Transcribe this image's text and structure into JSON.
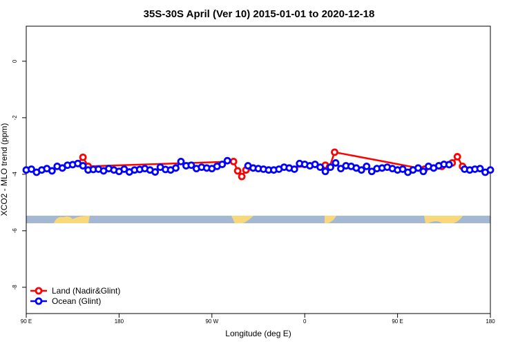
{
  "chart_data": {
    "type": "line",
    "title": "35S-30S April (Ver 10)   2015-01-01 to 2020-12-18",
    "xlabel": "Longitude (deg E)",
    "ylabel": "XCO2 - MLO trend (ppm)",
    "xlim": [
      90,
      540
    ],
    "ylim": [
      -8.93,
      1.24
    ],
    "xticks": [
      {
        "value": 90,
        "label": "90 E"
      },
      180,
      {
        "value": 270,
        "label": "90 W"
      },
      {
        "value": 360,
        "label": "0"
      },
      {
        "value": 450,
        "label": "90 E"
      },
      {
        "value": 540,
        "label": "180"
      }
    ],
    "yticks": [
      0,
      -2,
      -4,
      -6,
      -8
    ],
    "legend": "bottom-left",
    "series": [
      {
        "name": "Land (Nadir&Glint)",
        "color": "#ff0000",
        "x": [
          140,
          145,
          150,
          291,
          295,
          299,
          303,
          380,
          384,
          389,
          476,
          493,
          503,
          508,
          513
        ],
        "values": [
          -3.62,
          -3.4,
          -3.72,
          -3.55,
          -3.88,
          -4.08,
          -3.85,
          -3.68,
          -3.75,
          -3.22,
          -3.82,
          -3.72,
          -3.6,
          -3.38,
          -3.72
        ]
      },
      {
        "name": "Ocean (Glint)",
        "color": "#0000ff",
        "x": [
          90,
          95,
          100,
          105,
          110,
          115,
          120,
          125,
          130,
          135,
          140,
          145,
          150,
          155,
          160,
          165,
          170,
          175,
          180,
          185,
          190,
          195,
          200,
          205,
          210,
          215,
          220,
          225,
          230,
          235,
          240,
          245,
          250,
          255,
          260,
          265,
          270,
          275,
          280,
          285,
          290,
          295,
          300,
          305,
          310,
          315,
          320,
          325,
          330,
          335,
          340,
          345,
          350,
          355,
          360,
          365,
          370,
          375,
          380,
          385,
          390,
          395,
          400,
          405,
          410,
          415,
          420,
          425,
          430,
          435,
          440,
          445,
          450,
          455,
          460,
          465,
          470,
          475,
          480,
          485,
          490,
          495,
          500,
          505,
          510,
          515,
          520,
          525,
          530,
          535,
          540
        ],
        "values": [
          -3.85,
          -3.82,
          -3.93,
          -3.85,
          -3.8,
          -3.88,
          -3.72,
          -3.78,
          -3.68,
          -3.66,
          -3.62,
          -3.7,
          -3.85,
          -3.83,
          -3.82,
          -3.88,
          -3.8,
          -3.85,
          -3.9,
          -3.82,
          -3.92,
          -3.85,
          -3.83,
          -3.8,
          -3.85,
          -3.92,
          -3.75,
          -3.83,
          -3.85,
          -3.78,
          -3.55,
          -3.7,
          -3.68,
          -3.8,
          -3.75,
          -3.78,
          -3.8,
          -3.72,
          -3.65,
          -3.52,
          null,
          null,
          null,
          -3.7,
          -3.78,
          -3.8,
          -3.82,
          -3.85,
          -3.85,
          -3.82,
          -3.75,
          -3.78,
          -3.82,
          -3.62,
          -3.65,
          -3.7,
          -3.65,
          -3.75,
          -3.9,
          -3.75,
          -3.6,
          -3.8,
          -3.7,
          -3.72,
          -3.78,
          -3.85,
          -3.72,
          -3.9,
          -3.8,
          -3.78,
          -3.75,
          -3.8,
          -3.85,
          -3.82,
          -3.93,
          -3.85,
          -3.78,
          -3.9,
          -3.72,
          -3.78,
          -3.7,
          -3.65,
          -3.66,
          null,
          null,
          -3.82,
          -3.85,
          -3.82,
          -3.8,
          -3.93,
          -3.85
        ]
      }
    ]
  }
}
